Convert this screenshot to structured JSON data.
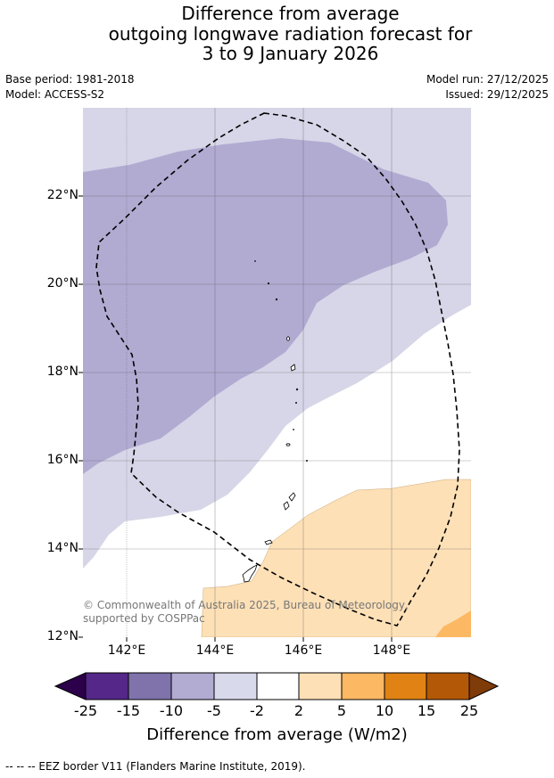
{
  "title_lines": [
    "Difference from average",
    "outgoing longwave radiation forecast for",
    "3 to 9 January 2026"
  ],
  "meta": {
    "base_period": "Base period: 1981-2018",
    "model": "Model: ACCESS-S2",
    "model_run": "Model run: 27/12/2025",
    "issued": "Issued: 29/12/2025"
  },
  "map": {
    "lat_labels": [
      "22°N",
      "20°N",
      "18°N",
      "16°N",
      "14°N",
      "12°N"
    ],
    "lon_labels": [
      "142°E",
      "144°E",
      "146°E",
      "148°E"
    ],
    "copyright": "© Commonwealth of Australia 2025, Bureau of Meteorology, supported by COSPPac",
    "region_colors": {
      "minus5_to_minus2": "#d6d6e8",
      "minus10_to_minus5": "#b1abd2",
      "plus2_to_plus5": "#fde0b6",
      "plus5_to_plus10": "#fdb863"
    }
  },
  "colorbar": {
    "ticks": [
      "-25",
      "-15",
      "-10",
      "-5",
      "-2",
      "2",
      "5",
      "10",
      "15",
      "25"
    ],
    "colors": [
      "#542788",
      "#8073ac",
      "#b2abd2",
      "#d8daeb",
      "#ffffff",
      "#fee0b6",
      "#fdb863",
      "#e08214",
      "#b35806"
    ],
    "under_color": "#2d004b",
    "over_color": "#7f3b08",
    "label": "Difference from average (W/m2)"
  },
  "footer": "--  --  -- EEZ border V11 (Flanders Marine Institute, 2019)."
}
